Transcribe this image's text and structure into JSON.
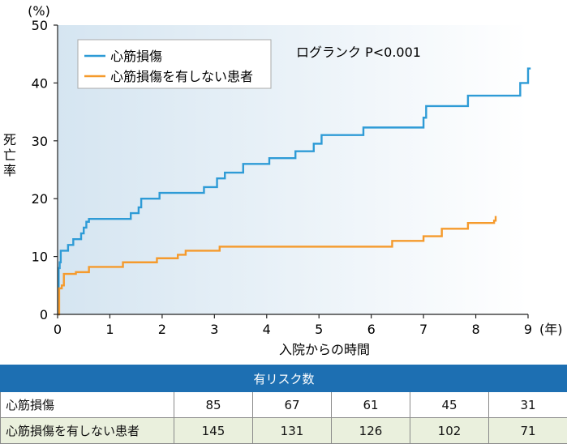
{
  "chart_data": {
    "type": "line",
    "unit_label": "(%)",
    "ylabel": "死亡率",
    "xlabel": "入院からの時間",
    "x_unit": "(年)",
    "annotation": "ログランク P<0.001",
    "xlim": [
      0,
      9
    ],
    "ylim": [
      0,
      50
    ],
    "x_ticks": [
      0,
      1,
      2,
      3,
      4,
      5,
      6,
      7,
      8,
      9
    ],
    "y_ticks": [
      0,
      10,
      20,
      30,
      40,
      50
    ],
    "legend": {
      "placement": "top-left"
    },
    "series": [
      {
        "name": "心筋損傷",
        "color": "#2e9bd6",
        "step": true,
        "x": [
          0,
          0.02,
          0.04,
          0.06,
          0.1,
          0.2,
          0.3,
          0.45,
          0.5,
          0.55,
          0.6,
          1.4,
          1.55,
          1.6,
          1.95,
          2.8,
          3.05,
          3.2,
          3.55,
          4.05,
          4.55,
          4.9,
          5.05,
          5.85,
          7.0,
          7.05,
          7.85,
          8.85,
          9.0,
          9.05
        ],
        "y": [
          0,
          8,
          9,
          11,
          11,
          12,
          13,
          14,
          15,
          16,
          16.5,
          17.5,
          18.5,
          20,
          21,
          22,
          23.5,
          24.5,
          26,
          27,
          28.2,
          29.5,
          31,
          32.3,
          34,
          36,
          37.8,
          40,
          42.5,
          42.5
        ]
      },
      {
        "name": "心筋損傷を有しない患者",
        "color": "#f59a2c",
        "step": true,
        "x": [
          0,
          0.03,
          0.08,
          0.12,
          0.35,
          0.6,
          1.25,
          1.9,
          2.3,
          2.45,
          3.1,
          6.4,
          7.0,
          7.35,
          7.85,
          8.35,
          8.38
        ],
        "y": [
          0,
          4.5,
          5,
          7,
          7.3,
          8.2,
          9,
          9.7,
          10.3,
          11,
          11.7,
          12.7,
          13.5,
          14.8,
          15.8,
          16.2,
          17
        ]
      }
    ]
  },
  "risk_table": {
    "title": "有リスク数",
    "rows": [
      {
        "label": "心筋損傷",
        "values": [
          "85",
          "67",
          "61",
          "45",
          "31"
        ]
      },
      {
        "label": "心筋損傷を有しない患者",
        "values": [
          "145",
          "131",
          "126",
          "102",
          "71"
        ]
      }
    ]
  }
}
